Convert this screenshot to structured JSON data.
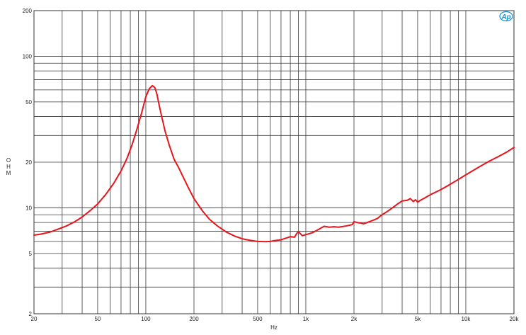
{
  "chart_data": {
    "type": "line",
    "title": "",
    "xlabel": "Hz",
    "ylabel": "OHM",
    "xscale": "log",
    "yscale": "log",
    "xlim": [
      20,
      20000
    ],
    "ylim": [
      2,
      200
    ],
    "grid": true,
    "x_ticks": [
      {
        "value": 20,
        "label": "20"
      },
      {
        "value": 50,
        "label": "50"
      },
      {
        "value": 100,
        "label": "100"
      },
      {
        "value": 200,
        "label": "200"
      },
      {
        "value": 500,
        "label": "500"
      },
      {
        "value": 1000,
        "label": "1k"
      },
      {
        "value": 2000,
        "label": "2k"
      },
      {
        "value": 5000,
        "label": "5k"
      },
      {
        "value": 10000,
        "label": "10k"
      },
      {
        "value": 20000,
        "label": "20k"
      }
    ],
    "y_ticks": [
      {
        "value": 2,
        "label": "2"
      },
      {
        "value": 5,
        "label": "5"
      },
      {
        "value": 10,
        "label": "10"
      },
      {
        "value": 20,
        "label": "20"
      },
      {
        "value": 50,
        "label": "50"
      },
      {
        "value": 100,
        "label": "100"
      },
      {
        "value": 200,
        "label": "200"
      }
    ],
    "series": [
      {
        "color": "#e8141b",
        "x": [
          20,
          22,
          25,
          28,
          32,
          36,
          40,
          45,
          50,
          56,
          63,
          70,
          76,
          82,
          88,
          94,
          100,
          105,
          110,
          114,
          117,
          120,
          125,
          132,
          140,
          150,
          160,
          170,
          185,
          200,
          225,
          250,
          280,
          320,
          360,
          400,
          450,
          500,
          560,
          600,
          630,
          700,
          750,
          800,
          850,
          880,
          900,
          950,
          1000,
          1100,
          1200,
          1300,
          1400,
          1500,
          1600,
          1800,
          1950,
          2000,
          2100,
          2300,
          2500,
          2800,
          3000,
          3300,
          3700,
          4000,
          4300,
          4500,
          4700,
          4850,
          5000,
          5200,
          5600,
          6000,
          7000,
          8000,
          9000,
          10000,
          12000,
          14000,
          16000,
          18000,
          20000
        ],
        "y": [
          6.6,
          6.7,
          6.9,
          7.2,
          7.6,
          8.1,
          8.7,
          9.6,
          10.6,
          12.2,
          14.5,
          17.5,
          21,
          26,
          33,
          42,
          54,
          61,
          64,
          62,
          57,
          50,
          41,
          32,
          26,
          21,
          18.5,
          16.2,
          13.5,
          11.5,
          9.6,
          8.4,
          7.6,
          6.9,
          6.5,
          6.25,
          6.1,
          6.0,
          5.98,
          6.0,
          6.07,
          6.15,
          6.3,
          6.45,
          6.4,
          6.8,
          6.95,
          6.55,
          6.65,
          6.85,
          7.2,
          7.55,
          7.45,
          7.5,
          7.45,
          7.6,
          7.75,
          8.1,
          8.0,
          7.85,
          8.1,
          8.5,
          9.0,
          9.6,
          10.5,
          11.1,
          11.2,
          11.5,
          11.0,
          11.3,
          10.9,
          11.2,
          11.7,
          12.2,
          13.2,
          14.3,
          15.4,
          16.5,
          18.5,
          20.3,
          21.8,
          23.3,
          25.0
        ]
      }
    ]
  },
  "logo": {
    "text": "Ap",
    "color": "#1a8fd0"
  }
}
